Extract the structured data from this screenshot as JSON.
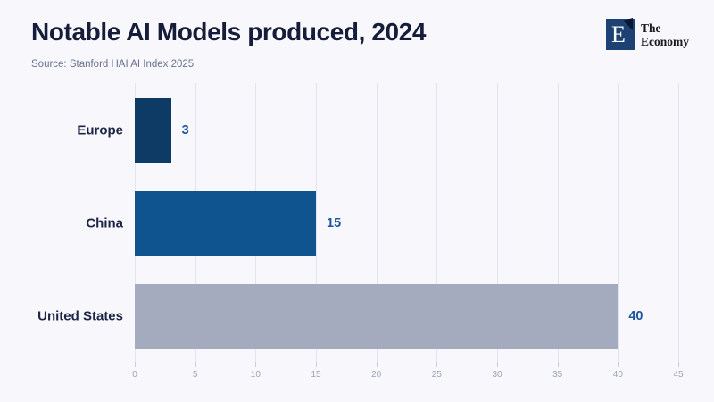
{
  "header": {
    "title": "Notable AI Models produced, 2024",
    "source": "Source: Stanford HAI AI Index 2025"
  },
  "logo": {
    "monogram": "E",
    "name_line1": "The",
    "name_line2": "Economy",
    "square_color": "#1d4173",
    "flag_color": "#0a1733"
  },
  "chart_data": {
    "type": "bar",
    "orientation": "horizontal",
    "title": "Notable AI Models produced, 2024",
    "source": "Source: Stanford HAI AI Index 2025",
    "categories": [
      "Europe",
      "China",
      "United States"
    ],
    "values": [
      3,
      15,
      40
    ],
    "bar_colors": [
      "#0e3a66",
      "#0f538f",
      "#a4abbe"
    ],
    "value_labels": [
      "3",
      "15",
      "40"
    ],
    "value_label_color": "#1d55a0",
    "category_label_color": "#1c2545",
    "xlim": [
      0,
      45
    ],
    "xticks": [
      0,
      5,
      10,
      15,
      20,
      25,
      30,
      35,
      40,
      45
    ],
    "grid": true,
    "gridline_color": "#e2e4ee",
    "tick_label_color": "#9aa3b8",
    "legend": "none",
    "background_color": "#f8f8fc"
  }
}
